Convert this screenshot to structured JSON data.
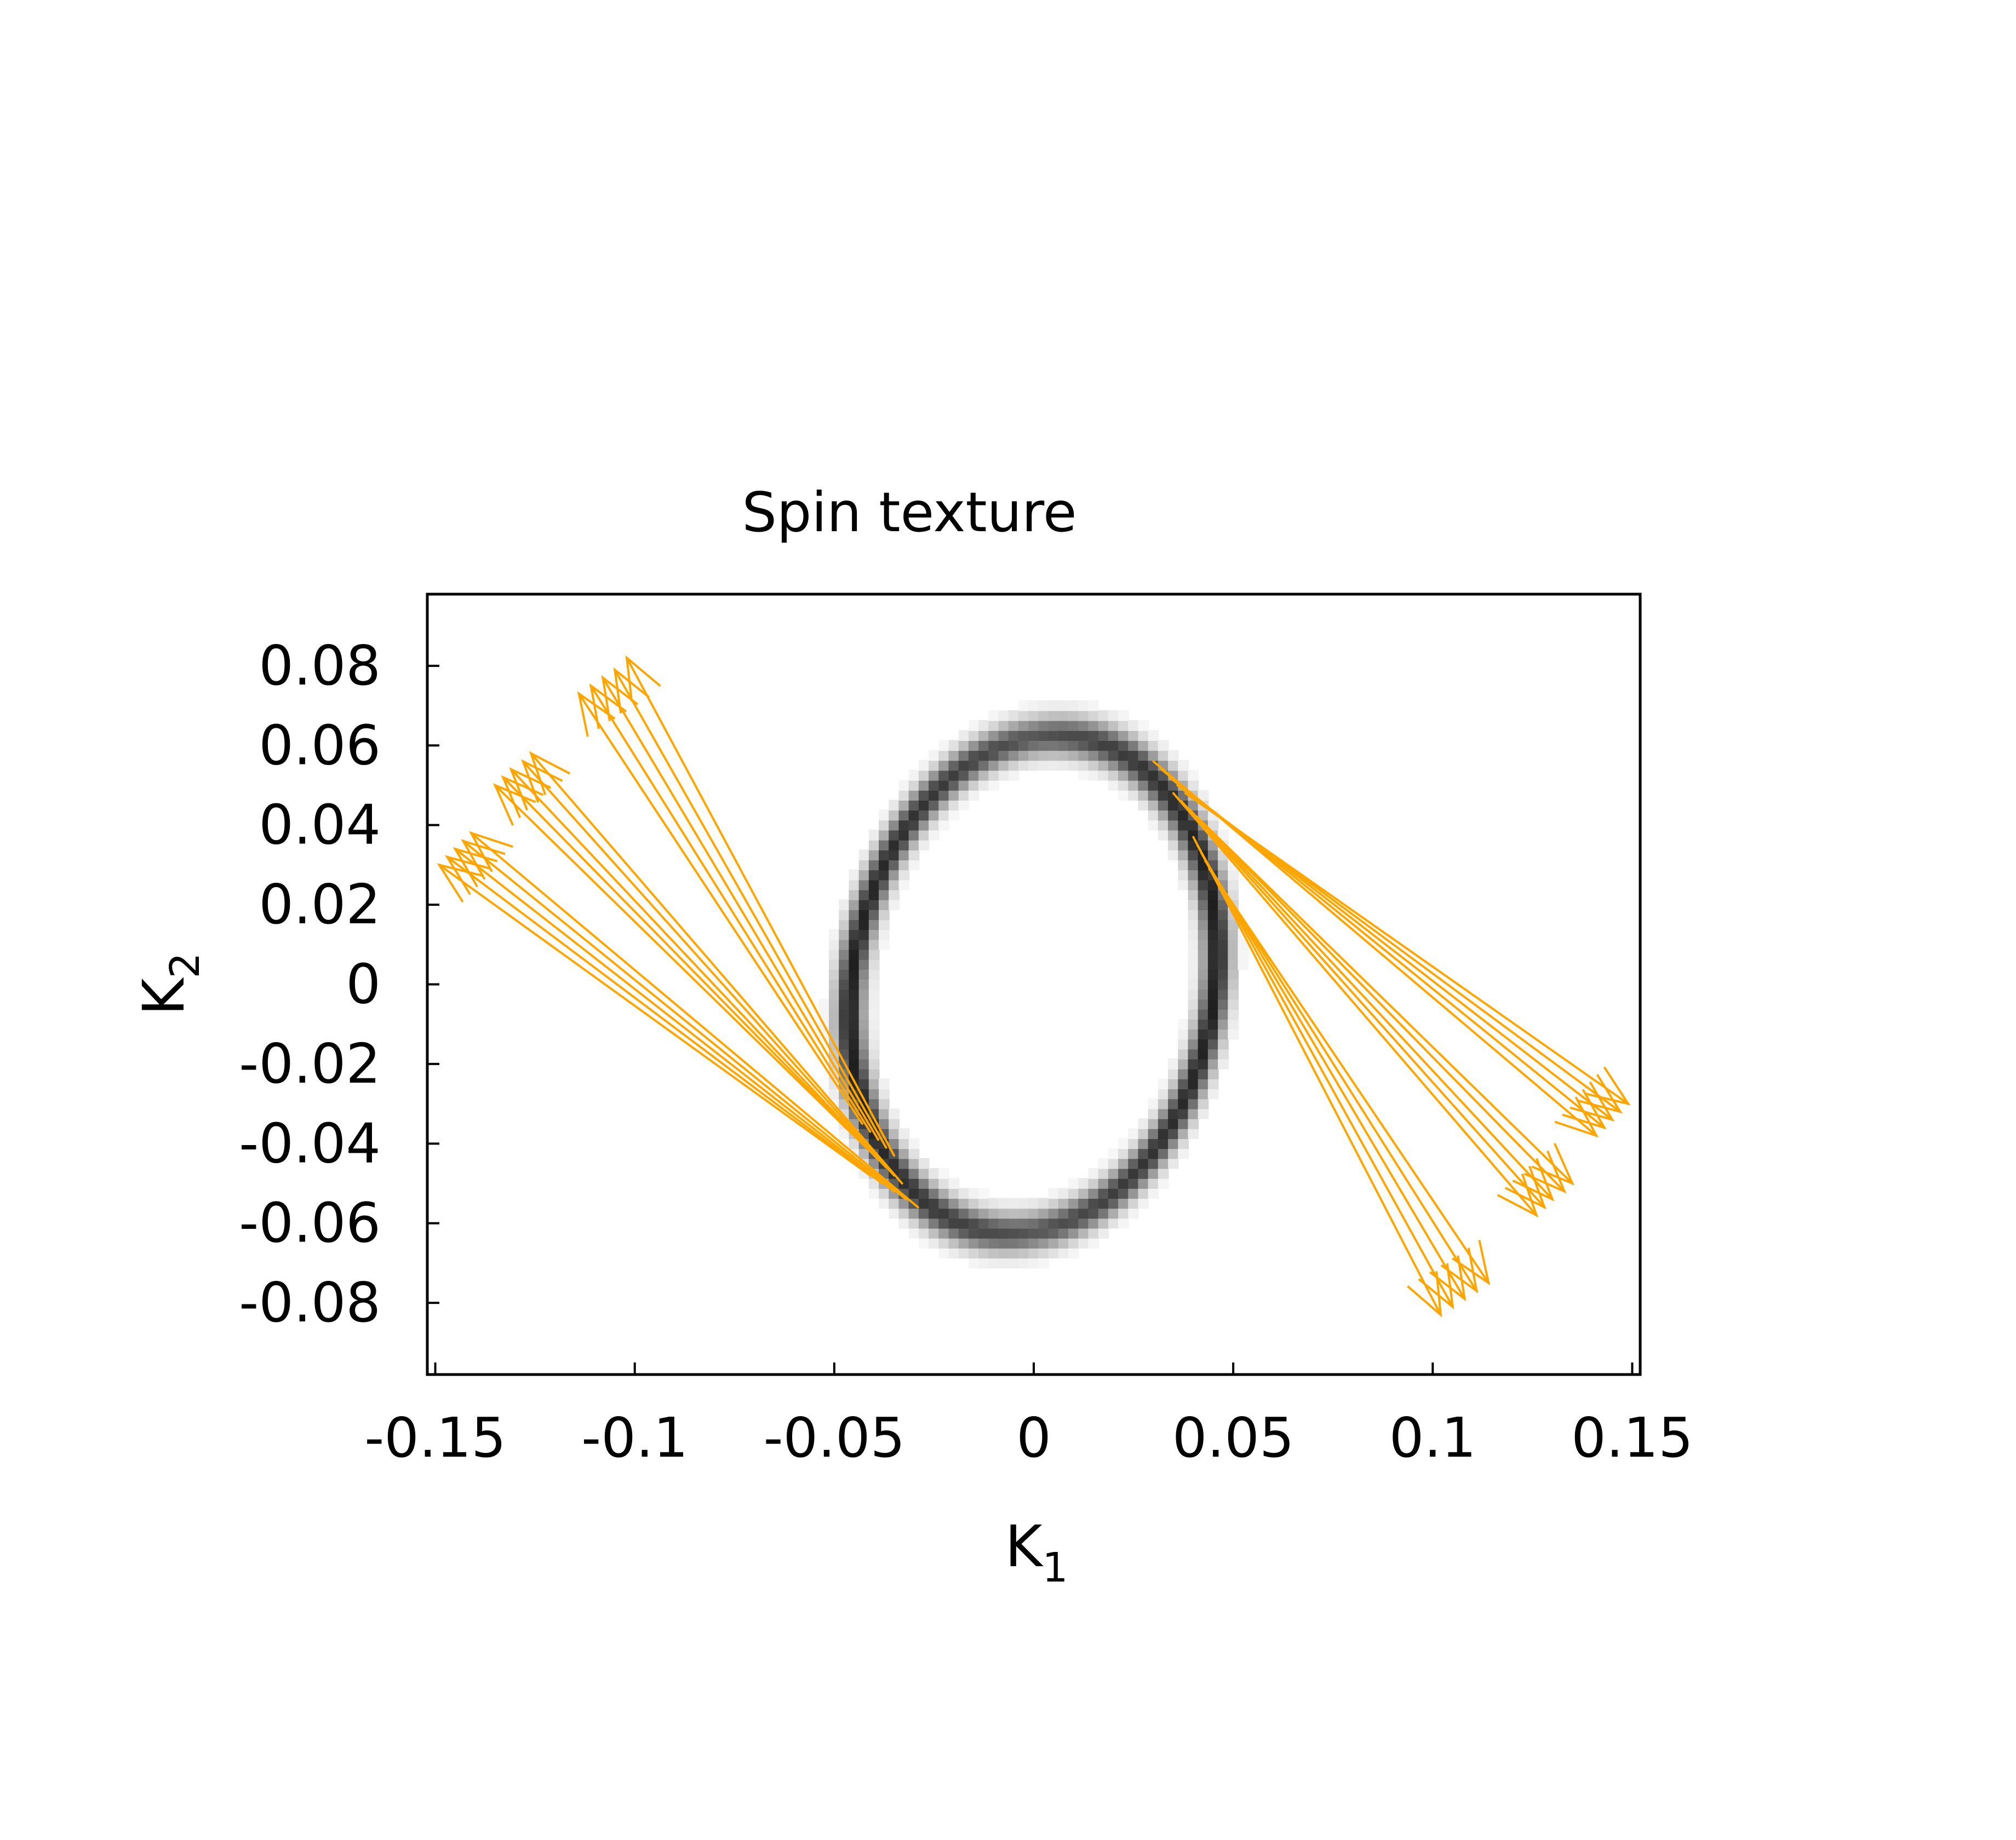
{
  "chart_data": {
    "type": "vector-field",
    "title": "Spin texture",
    "xlabel": {
      "base": "K",
      "sub": "1"
    },
    "ylabel": {
      "base": "K",
      "sub": "2"
    },
    "xlim": [
      -0.152,
      0.152
    ],
    "ylim": [
      -0.098,
      0.098
    ],
    "xticks": [
      -0.15,
      -0.1,
      -0.05,
      0,
      0.05,
      0.1,
      0.15
    ],
    "xtick_labels": [
      "-0.15",
      "-0.1",
      "-0.05",
      "0",
      "0.05",
      "0.1",
      "0.15"
    ],
    "yticks": [
      -0.08,
      -0.06,
      -0.04,
      -0.02,
      0,
      0.02,
      0.04,
      0.06,
      0.08
    ],
    "ytick_labels": [
      "-0.08",
      "-0.06",
      "-0.04",
      "-0.02",
      "0",
      "0.02",
      "0.04",
      "0.06",
      "0.08"
    ],
    "arrow_color": "#ffa500",
    "background_map": {
      "colormap": "grayscale",
      "ring_center": [
        0.0,
        0.0
      ],
      "ring_half_width": 0.046,
      "ring_half_height": 0.062,
      "ring_skew": 0.12,
      "band_colors": [
        "#ffffff",
        "#202020"
      ]
    },
    "arrow_groups": [
      {
        "arrows": [
          {
            "x0": -0.043,
            "y0": -0.035,
            "x1": -0.114,
            "y1": 0.073
          },
          {
            "x0": -0.041,
            "y0": -0.037,
            "x1": -0.111,
            "y1": 0.075
          },
          {
            "x0": -0.039,
            "y0": -0.039,
            "x1": -0.108,
            "y1": 0.077
          },
          {
            "x0": -0.037,
            "y0": -0.041,
            "x1": -0.105,
            "y1": 0.079
          },
          {
            "x0": -0.035,
            "y0": -0.043,
            "x1": -0.102,
            "y1": 0.082
          }
        ]
      },
      {
        "arrows": [
          {
            "x0": -0.041,
            "y0": -0.042,
            "x1": -0.135,
            "y1": 0.05
          },
          {
            "x0": -0.039,
            "y0": -0.044,
            "x1": -0.133,
            "y1": 0.052
          },
          {
            "x0": -0.037,
            "y0": -0.046,
            "x1": -0.131,
            "y1": 0.054
          },
          {
            "x0": -0.035,
            "y0": -0.048,
            "x1": -0.128,
            "y1": 0.056
          },
          {
            "x0": -0.033,
            "y0": -0.05,
            "x1": -0.126,
            "y1": 0.058
          }
        ]
      },
      {
        "arrows": [
          {
            "x0": -0.041,
            "y0": -0.048,
            "x1": -0.149,
            "y1": 0.03
          },
          {
            "x0": -0.038,
            "y0": -0.05,
            "x1": -0.147,
            "y1": 0.032
          },
          {
            "x0": -0.035,
            "y0": -0.052,
            "x1": -0.145,
            "y1": 0.034
          },
          {
            "x0": -0.032,
            "y0": -0.054,
            "x1": -0.143,
            "y1": 0.036
          },
          {
            "x0": -0.029,
            "y0": -0.056,
            "x1": -0.141,
            "y1": 0.038
          }
        ]
      },
      {
        "arrows": [
          {
            "x0": 0.03,
            "y0": 0.056,
            "x1": 0.141,
            "y1": -0.038
          },
          {
            "x0": 0.032,
            "y0": 0.054,
            "x1": 0.143,
            "y1": -0.036
          },
          {
            "x0": 0.034,
            "y0": 0.052,
            "x1": 0.145,
            "y1": -0.034
          },
          {
            "x0": 0.036,
            "y0": 0.05,
            "x1": 0.147,
            "y1": -0.032
          },
          {
            "x0": 0.038,
            "y0": 0.048,
            "x1": 0.149,
            "y1": -0.03
          }
        ]
      },
      {
        "arrows": [
          {
            "x0": 0.035,
            "y0": 0.048,
            "x1": 0.126,
            "y1": -0.058
          },
          {
            "x0": 0.037,
            "y0": 0.046,
            "x1": 0.128,
            "y1": -0.056
          },
          {
            "x0": 0.039,
            "y0": 0.044,
            "x1": 0.13,
            "y1": -0.054
          },
          {
            "x0": 0.041,
            "y0": 0.042,
            "x1": 0.133,
            "y1": -0.052
          },
          {
            "x0": 0.043,
            "y0": 0.04,
            "x1": 0.135,
            "y1": -0.05
          }
        ]
      },
      {
        "arrows": [
          {
            "x0": 0.04,
            "y0": 0.037,
            "x1": 0.102,
            "y1": -0.083
          },
          {
            "x0": 0.041,
            "y0": 0.035,
            "x1": 0.105,
            "y1": -0.081
          },
          {
            "x0": 0.042,
            "y0": 0.033,
            "x1": 0.108,
            "y1": -0.079
          },
          {
            "x0": 0.043,
            "y0": 0.031,
            "x1": 0.111,
            "y1": -0.077
          },
          {
            "x0": 0.044,
            "y0": 0.029,
            "x1": 0.114,
            "y1": -0.075
          }
        ]
      }
    ]
  }
}
